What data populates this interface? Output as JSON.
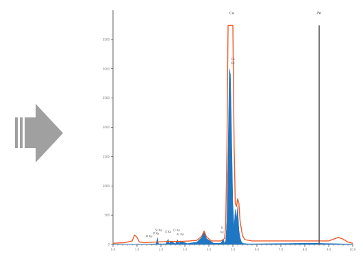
{
  "arrow": {
    "icon": "right-arrow-icon",
    "color": "#a0a0a0"
  },
  "chart_data": {
    "type": "area",
    "title": "",
    "xlabel": "",
    "ylabel": "",
    "xlim": [
      0,
      10
    ],
    "ylim": [
      0,
      4000
    ],
    "grid": false,
    "x_ticks": [
      0,
      1,
      2,
      3,
      4,
      5,
      6,
      7,
      8,
      9,
      10
    ],
    "x_tick_labels": [
      "0.0",
      "1.0",
      "2.0",
      "3.0",
      "4.0",
      "5.0",
      "6.0",
      "7.0",
      "8.0",
      "9.0",
      "10.0"
    ],
    "y_ticks": [
      0,
      500,
      1000,
      1500,
      2000,
      2500,
      3000,
      3500
    ],
    "y_tick_labels": [
      "0",
      "500",
      "1000",
      "1500",
      "2000",
      "2500",
      "3000",
      "3500"
    ],
    "colors": {
      "measured": "#1f77c4",
      "fit": "#f05a28",
      "marker": "#555555"
    },
    "series": [
      {
        "style": "area",
        "x": [
          0.0,
          0.9,
          1.0,
          1.4,
          1.8,
          1.85,
          1.9,
          2.2,
          2.3,
          2.35,
          2.4,
          2.6,
          2.7,
          2.75,
          2.8,
          3.1,
          3.5,
          3.7,
          3.8,
          3.9,
          4.2,
          4.5,
          4.6,
          4.65,
          4.7,
          4.75,
          4.8,
          4.85,
          4.9,
          4.95,
          5.0,
          5.05,
          5.1,
          5.15,
          5.2,
          5.25,
          5.3,
          5.35,
          5.4,
          5.5,
          5.6,
          6.0,
          7.0,
          8.0,
          8.5,
          9.0,
          9.5,
          10.0
        ],
        "y": [
          0,
          0,
          5,
          5,
          10,
          120,
          10,
          10,
          90,
          10,
          60,
          10,
          80,
          10,
          60,
          15,
          40,
          120,
          220,
          100,
          20,
          20,
          90,
          20,
          60,
          400,
          1600,
          3000,
          2900,
          1800,
          700,
          300,
          600,
          450,
          650,
          250,
          120,
          50,
          20,
          15,
          10,
          10,
          15,
          20,
          20,
          15,
          10,
          5
        ]
      },
      {
        "style": "line",
        "x": [
          0.0,
          0.5,
          0.8,
          0.9,
          1.0,
          1.1,
          1.3,
          1.8,
          2.3,
          2.8,
          3.2,
          3.5,
          3.7,
          3.8,
          3.9,
          4.1,
          4.5,
          4.65,
          4.7,
          4.75,
          4.8,
          5.0,
          5.05,
          5.1,
          5.15,
          5.2,
          5.25,
          5.3,
          5.4,
          5.5,
          5.8,
          6.5,
          7.5,
          8.0,
          8.5,
          9.0,
          9.2,
          9.4,
          9.6,
          9.8,
          10.0
        ],
        "y": [
          20,
          30,
          60,
          160,
          120,
          40,
          30,
          40,
          50,
          50,
          60,
          70,
          140,
          230,
          130,
          60,
          60,
          100,
          300,
          1600,
          3740,
          3740,
          1700,
          700,
          650,
          780,
          700,
          400,
          150,
          80,
          60,
          60,
          60,
          60,
          60,
          60,
          90,
          120,
          90,
          40,
          20
        ]
      }
    ],
    "markers": [
      {
        "x": 8.6,
        "label": "Fe",
        "top": 3740
      }
    ],
    "annotations": [
      {
        "label": "Ca",
        "x": 4.95,
        "y": 3740,
        "size": "large"
      },
      {
        "label": "Ca",
        "x": 5.0,
        "y": 3150,
        "size": "small"
      },
      {
        "label": "Kα",
        "x": 5.0,
        "y": 3080,
        "size": "small"
      },
      {
        "label": "K",
        "x": 4.9,
        "y": 1600,
        "size": "small"
      },
      {
        "label": "Kα",
        "x": 4.9,
        "y": 1520,
        "size": "small"
      },
      {
        "label": "K",
        "x": 4.55,
        "y": 270,
        "size": "small"
      },
      {
        "label": "Kα",
        "x": 4.55,
        "y": 190,
        "size": "small"
      },
      {
        "label": "Si Ka",
        "x": 1.9,
        "y": 230,
        "size": "small"
      },
      {
        "label": "P Ka",
        "x": 1.8,
        "y": 170,
        "size": "small"
      },
      {
        "label": "S Ka",
        "x": 2.3,
        "y": 200,
        "size": "small"
      },
      {
        "label": "Cl Ka",
        "x": 2.65,
        "y": 230,
        "size": "small"
      },
      {
        "label": "Ar Ka",
        "x": 2.8,
        "y": 160,
        "size": "small"
      },
      {
        "label": "Al Ka",
        "x": 1.5,
        "y": 120,
        "size": "small"
      }
    ]
  }
}
